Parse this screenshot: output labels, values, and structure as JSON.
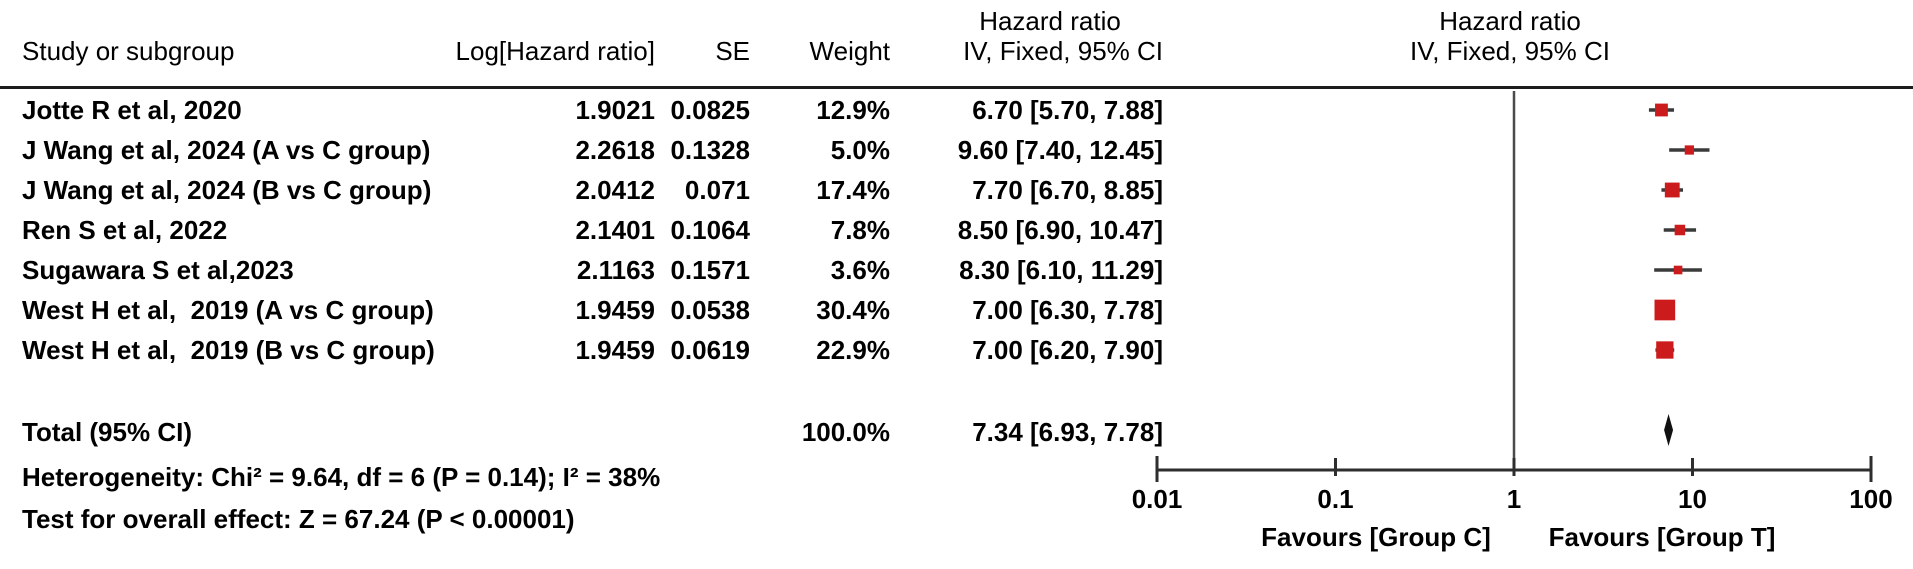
{
  "table": {
    "headers": {
      "study": "Study or subgroup",
      "log_hr": "Log[Hazard ratio]",
      "se": "SE",
      "weight": "Weight",
      "hazard_ratio_line1": "Hazard ratio",
      "hazard_ratio_line2": "IV, Fixed, 95% CI"
    },
    "rows": [
      {
        "name": "Jotte R et al, 2020",
        "log_hr": "1.9021",
        "se": "0.0825",
        "weight": "12.9%",
        "ci": "6.70 [5.70, 7.88]"
      },
      {
        "name": "J Wang et al, 2024 (A vs C group)",
        "log_hr": "2.2618",
        "se": "0.1328",
        "weight": "5.0%",
        "ci": "9.60 [7.40, 12.45]"
      },
      {
        "name": "J Wang et al, 2024 (B vs C group)",
        "log_hr": "2.0412",
        "se": "0.071",
        "weight": "17.4%",
        "ci": "7.70 [6.70, 8.85]"
      },
      {
        "name": "Ren S et al, 2022",
        "log_hr": "2.1401",
        "se": "0.1064",
        "weight": "7.8%",
        "ci": "8.50 [6.90, 10.47]"
      },
      {
        "name": "Sugawara S et al,2023",
        "log_hr": "2.1163",
        "se": "0.1571",
        "weight": "3.6%",
        "ci": "8.30 [6.10, 11.29]"
      },
      {
        "name": "West H et al,  2019 (A vs C group)",
        "log_hr": "1.9459",
        "se": "0.0538",
        "weight": "30.4%",
        "ci": "7.00 [6.30, 7.78]"
      },
      {
        "name": "West H et al,  2019 (B vs C group)",
        "log_hr": "1.9459",
        "se": "0.0619",
        "weight": "22.9%",
        "ci": "7.00 [6.20, 7.90]"
      }
    ],
    "total": {
      "label": "Total (95% CI)",
      "weight": "100.0%",
      "ci": "7.34 [6.93, 7.78]"
    }
  },
  "footer": {
    "heterogeneity": "Heterogeneity: Chi² = 9.64, df = 6 (P = 0.14); I² = 38%",
    "overall_effect": "Test for overall effect: Z = 67.24 (P < 0.00001)"
  },
  "chart_data": {
    "type": "forest",
    "x_scale": "log10",
    "x_axis_range": [
      0.01,
      100
    ],
    "x_ticks": [
      0.01,
      0.1,
      1,
      10,
      100
    ],
    "tick_labels": [
      "0.01",
      "0.1",
      "1",
      "10",
      "100"
    ],
    "null_line": 1,
    "favours_left": "Favours [Group C]",
    "favours_right": "Favours [Group T]",
    "marker_color": "#cc1b1d",
    "ci_line_color": "#3a3a3a",
    "diamond_color": "#111111",
    "axis_color": "#2e2e2e",
    "studies": [
      {
        "name": "Jotte R et al, 2020",
        "hr": 6.7,
        "ci_lo": 5.7,
        "ci_hi": 7.88,
        "weight_pct": 12.9
      },
      {
        "name": "J Wang et al, 2024 (A vs C group)",
        "hr": 9.6,
        "ci_lo": 7.4,
        "ci_hi": 12.45,
        "weight_pct": 5.0
      },
      {
        "name": "J Wang et al, 2024 (B vs C group)",
        "hr": 7.7,
        "ci_lo": 6.7,
        "ci_hi": 8.85,
        "weight_pct": 17.4
      },
      {
        "name": "Ren S et al, 2022",
        "hr": 8.5,
        "ci_lo": 6.9,
        "ci_hi": 10.47,
        "weight_pct": 7.8
      },
      {
        "name": "Sugawara S et al,2023",
        "hr": 8.3,
        "ci_lo": 6.1,
        "ci_hi": 11.29,
        "weight_pct": 3.6
      },
      {
        "name": "West H et al,  2019 (A vs C group)",
        "hr": 7.0,
        "ci_lo": 6.3,
        "ci_hi": 7.78,
        "weight_pct": 30.4
      },
      {
        "name": "West H et al,  2019 (B vs C group)",
        "hr": 7.0,
        "ci_lo": 6.2,
        "ci_hi": 7.9,
        "weight_pct": 22.9
      }
    ],
    "total": {
      "hr": 7.34,
      "ci_lo": 6.93,
      "ci_hi": 7.78,
      "weight_pct": 100.0
    }
  }
}
